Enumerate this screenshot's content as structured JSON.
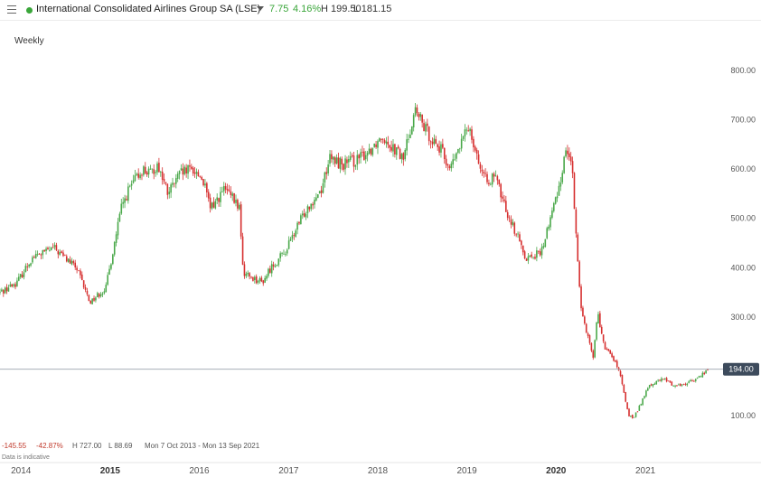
{
  "header": {
    "title": "International Consolidated Airlines Group SA (LSE)",
    "change": "7.75",
    "change_pct": "4.16%",
    "high": "H 199.50",
    "low": "L 181.15",
    "live_color": "#3aa63a",
    "change_color": "#3aa63a",
    "icons": [
      "menu-icon",
      "live-dot",
      "caret-down-icon"
    ]
  },
  "interval": "Weekly",
  "footer": {
    "period_change": "-145.55",
    "period_change_pct": "-42.87%",
    "period_high": "H 727.00",
    "period_low": "L 88.69",
    "range": "Mon 7 Oct 2013 - Mon 13 Sep 2021",
    "disclaimer": "Data is indicative"
  },
  "chart_data": {
    "type": "candlestick",
    "y_ticks": [
      "100.00",
      "200.00",
      "300.00",
      "400.00",
      "500.00",
      "600.00",
      "700.00",
      "800.00"
    ],
    "ylim": [
      70,
      840
    ],
    "x_ticks": [
      {
        "label": "2014",
        "bold": false
      },
      {
        "label": "2015",
        "bold": true
      },
      {
        "label": "2016",
        "bold": false
      },
      {
        "label": "2017",
        "bold": false
      },
      {
        "label": "2018",
        "bold": false
      },
      {
        "label": "2019",
        "bold": false
      },
      {
        "label": "2020",
        "bold": true
      },
      {
        "label": "2021",
        "bold": false
      }
    ],
    "x_range": [
      "2013-10-07",
      "2021-09-13"
    ],
    "last_price": "194.00",
    "last_value": 194,
    "up_color": "#4aa84a",
    "down_color": "#d62f2f",
    "grid": false,
    "path_dates": [
      "2013-10-07",
      "2013-12-15",
      "2014-02-15",
      "2014-05-15",
      "2014-08-15",
      "2014-10-10",
      "2014-12-15",
      "2015-01-15",
      "2015-02-15",
      "2015-03-20",
      "2015-05-15",
      "2015-06-15",
      "2015-07-15",
      "2015-08-25",
      "2015-10-15",
      "2015-12-05",
      "2016-01-15",
      "2016-02-15",
      "2016-04-15",
      "2016-06-15",
      "2016-06-28",
      "2016-09-15",
      "2016-10-20",
      "2016-12-15",
      "2017-03-15",
      "2017-05-15",
      "2017-06-15",
      "2017-08-15",
      "2017-10-15",
      "2017-12-01",
      "2018-01-20",
      "2018-04-15",
      "2018-06-01",
      "2018-07-15",
      "2018-09-15",
      "2018-10-25",
      "2019-01-10",
      "2019-03-10",
      "2019-05-01",
      "2019-06-01",
      "2019-08-15",
      "2019-09-01",
      "2019-11-01",
      "2019-12-15",
      "2020-01-20",
      "2020-02-10",
      "2020-03-05",
      "2020-03-20",
      "2020-04-15",
      "2020-06-01",
      "2020-06-20",
      "2020-07-15",
      "2020-08-30",
      "2020-09-20",
      "2020-10-25",
      "2020-11-15",
      "2021-01-15",
      "2021-03-15",
      "2021-05-01",
      "2021-06-15",
      "2021-08-01",
      "2021-09-13"
    ],
    "path_values": [
      350,
      370,
      420,
      440,
      400,
      330,
      360,
      440,
      520,
      560,
      600,
      590,
      610,
      550,
      590,
      600,
      580,
      520,
      560,
      520,
      390,
      370,
      400,
      430,
      520,
      560,
      620,
      610,
      620,
      640,
      670,
      620,
      720,
      680,
      640,
      600,
      690,
      580,
      580,
      530,
      440,
      420,
      430,
      510,
      580,
      640,
      620,
      480,
      310,
      220,
      310,
      240,
      210,
      180,
      100,
      95,
      160,
      175,
      160,
      165,
      175,
      194
    ]
  }
}
